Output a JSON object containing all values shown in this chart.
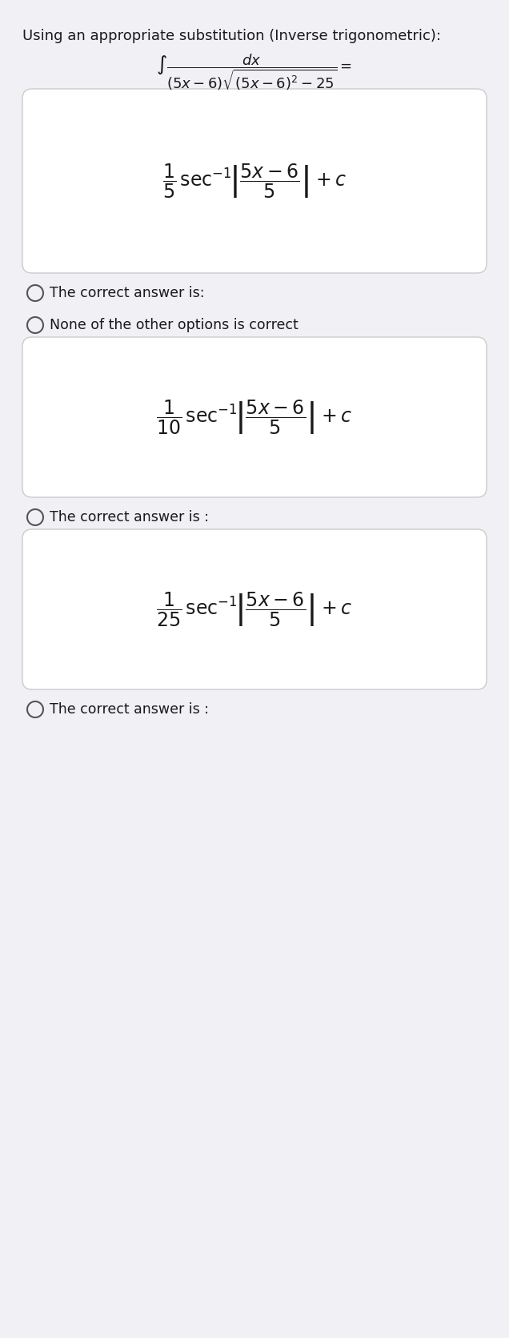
{
  "bg_color": "#f0f0f5",
  "card_color": "#ffffff",
  "text_color": "#1a1a1a",
  "title": "Using an appropriate substitution (Inverse trigonometric):",
  "integral_expr": "$\\int \\dfrac{dx}{(5x-6)\\sqrt{(5x-6)^2 - 25}} =$",
  "option1_formula": "$\\dfrac{1}{5}\\,\\mathrm{sec}^{-1}\\left|\\dfrac{5x-6}{5}\\right| + c$",
  "option1_label": "The correct answer is:",
  "option2_label": "None of the other options is correct",
  "option3_formula": "$\\dfrac{1}{10}\\,\\mathrm{sec}^{-1}\\left|\\dfrac{5x-6}{5}\\right| + c$",
  "option3_label": "The correct answer is :",
  "option4_formula": "$\\dfrac{1}{25}\\,\\mathrm{sec}^{-1}\\left|\\dfrac{5x-6}{5}\\right| + c$",
  "option4_label": "The correct answer is :"
}
